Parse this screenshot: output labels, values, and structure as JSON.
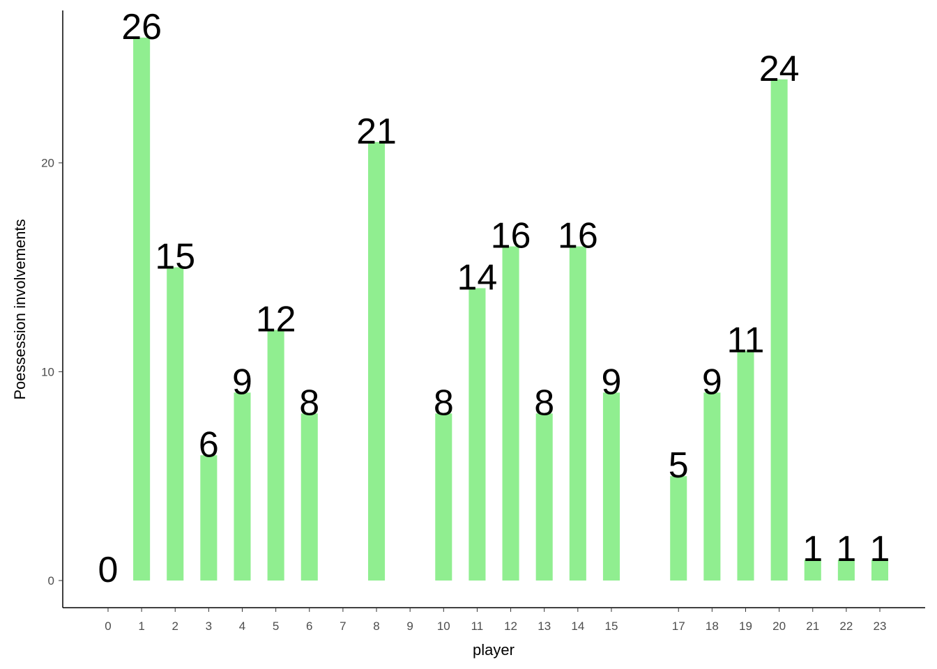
{
  "chart_data": {
    "type": "bar",
    "x_label": "player",
    "y_label": "Poessession involvements",
    "x": [
      0,
      1,
      2,
      3,
      4,
      5,
      6,
      8,
      10,
      11,
      12,
      13,
      14,
      15,
      17,
      18,
      19,
      20,
      21,
      22,
      23
    ],
    "values": [
      0,
      26,
      15,
      6,
      9,
      12,
      8,
      21,
      8,
      14,
      16,
      8,
      16,
      9,
      5,
      9,
      11,
      24,
      1,
      1,
      1
    ],
    "color": "#90ee90",
    "xlim": [
      -1.35,
      24.35
    ],
    "xticks": [
      0,
      1,
      2,
      3,
      4,
      5,
      6,
      7,
      8,
      9,
      10,
      11,
      12,
      13,
      14,
      15,
      17,
      18,
      19,
      20,
      21,
      22,
      23
    ],
    "ylim": [
      -1.3,
      27.3
    ],
    "yticks": [
      0,
      10,
      20
    ]
  }
}
